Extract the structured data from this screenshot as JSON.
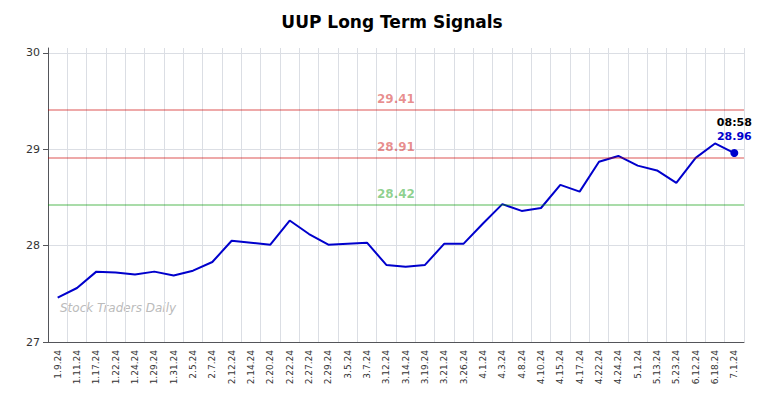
{
  "chart_data": {
    "type": "line",
    "title": "UUP Long Term Signals",
    "categories": [
      "1.9.24",
      "1.11.24",
      "1.17.24",
      "1.22.24",
      "1.24.24",
      "1.29.24",
      "1.31.24",
      "2.5.24",
      "2.7.24",
      "2.12.24",
      "2.14.24",
      "2.20.24",
      "2.22.24",
      "2.27.24",
      "2.29.24",
      "3.5.24",
      "3.7.24",
      "3.12.24",
      "3.14.24",
      "3.19.24",
      "3.21.24",
      "3.26.24",
      "4.1.24",
      "4.3.24",
      "4.8.24",
      "4.10.24",
      "4.15.24",
      "4.17.24",
      "4.22.24",
      "4.24.24",
      "5.1.24",
      "5.13.24",
      "5.23.24",
      "6.12.24",
      "6.18.24",
      "7.1.24"
    ],
    "values": [
      27.46,
      27.56,
      27.73,
      27.72,
      27.7,
      27.73,
      27.69,
      27.74,
      27.83,
      28.05,
      28.03,
      28.01,
      28.26,
      28.12,
      28.01,
      28.02,
      28.03,
      27.8,
      27.78,
      27.8,
      28.02,
      28.02,
      28.23,
      28.43,
      28.36,
      28.39,
      28.63,
      28.56,
      28.87,
      28.93,
      28.83,
      28.78,
      28.65,
      28.91,
      29.06,
      28.96
    ],
    "color": "#0000cc",
    "ylim": [
      27,
      30.05
    ],
    "yticks": [
      27,
      28,
      29,
      30
    ],
    "grid": true,
    "annotations": [
      {
        "text": "29.41",
        "y": 29.41,
        "color": "#cc0000"
      },
      {
        "text": "28.91",
        "y": 28.91,
        "color": "#cc0000"
      },
      {
        "text": "28.42",
        "y": 28.42,
        "color": "#009900"
      },
      {
        "text": "08:58",
        "x": "7.1.24",
        "y": 28.96,
        "color": "#000000"
      },
      {
        "text": "28.96",
        "x": "7.1.24",
        "y": 28.96,
        "color": "#0000cc"
      }
    ],
    "watermark": "Stock Traders Daily"
  }
}
